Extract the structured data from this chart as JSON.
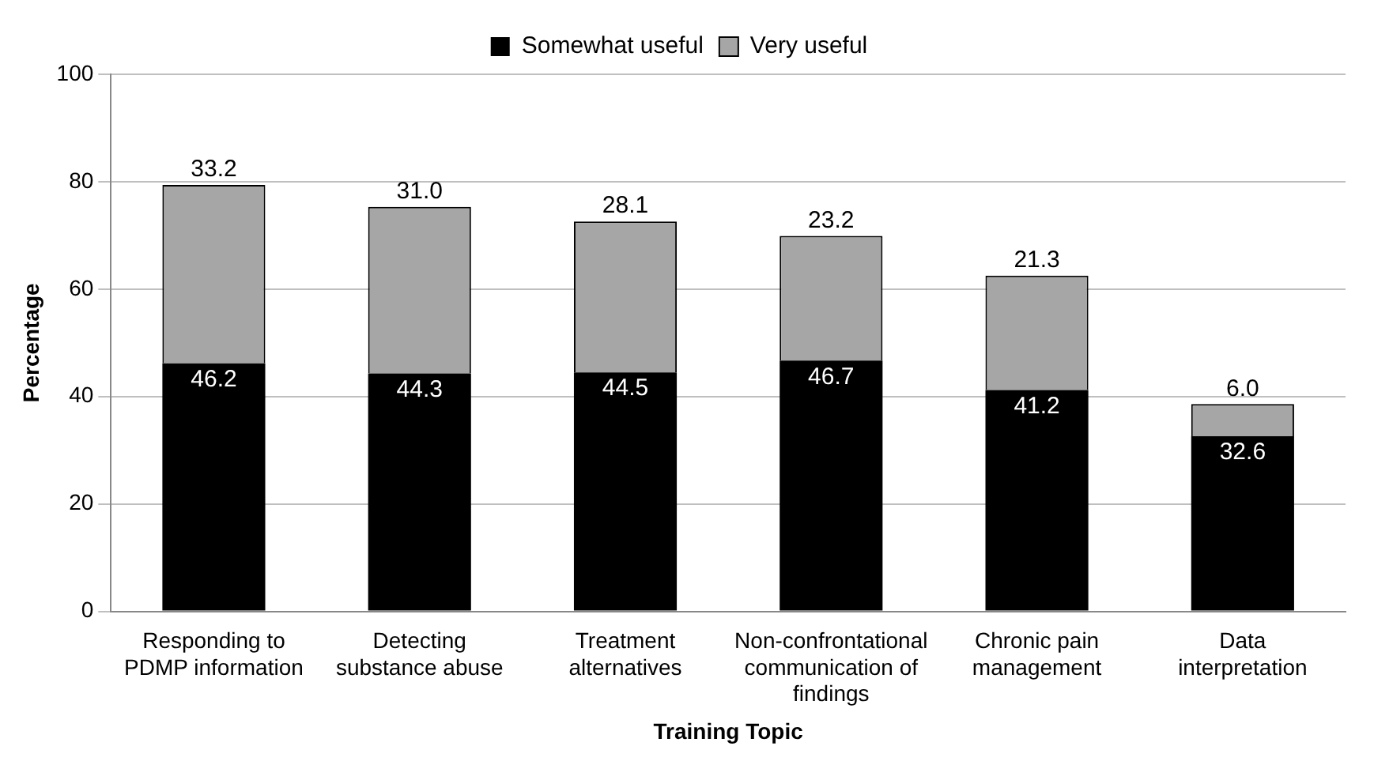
{
  "chart_data": {
    "type": "bar",
    "stacked": true,
    "xlabel": "Training Topic",
    "ylabel": "Percentage",
    "categories": [
      "Responding to PDMP information",
      "Detecting substance abuse",
      "Treatment alternatives",
      "Non-confrontational communication of findings",
      "Chronic pain management",
      "Data interpretation"
    ],
    "series": [
      {
        "name": "Somewhat useful",
        "color": "#000000",
        "values": [
          46.2,
          44.3,
          44.5,
          46.7,
          41.2,
          32.6
        ],
        "value_labels": [
          "46.2",
          "44.3",
          "44.5",
          "46.7",
          "41.2",
          "32.6"
        ]
      },
      {
        "name": "Very useful",
        "color": "#a6a6a6",
        "values": [
          33.2,
          31.0,
          28.1,
          23.2,
          21.3,
          6.0
        ],
        "value_labels": [
          "33.2",
          "31.0",
          "28.1",
          "23.2",
          "21.3",
          "6.0"
        ]
      }
    ],
    "ylim": [
      0,
      100
    ],
    "yticks": [
      0,
      20,
      40,
      60,
      80,
      100
    ],
    "grid": "y",
    "legend": "top"
  }
}
